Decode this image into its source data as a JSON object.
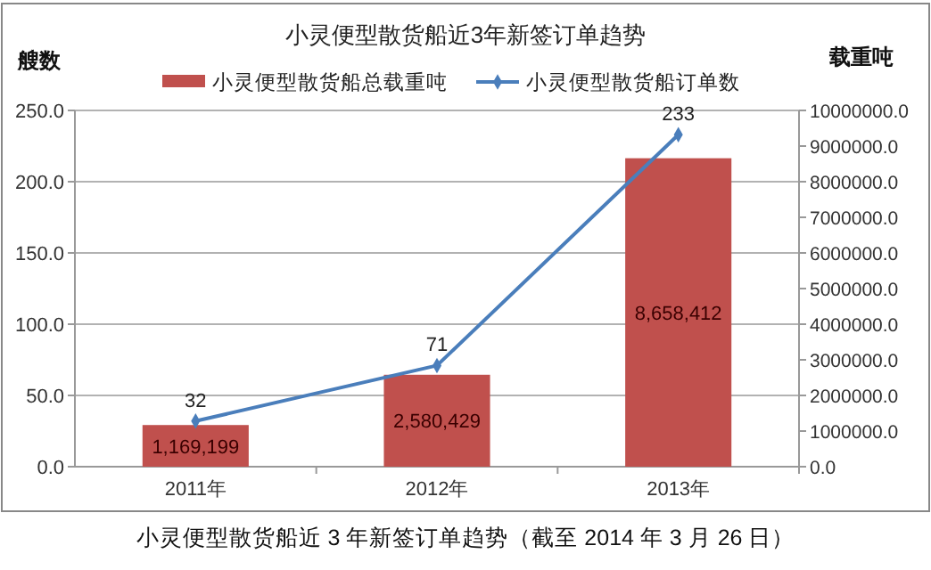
{
  "chart_data": {
    "type": "bar",
    "title": "小灵便型散货船近3年新签订单趋势",
    "ylabel": "艘数",
    "y2label": "载重吨",
    "categories": [
      "2011年",
      "2012年",
      "2013年"
    ],
    "series": [
      {
        "name": "小灵便型散货船总载重吨",
        "axis": "y2",
        "color": "#c0504d",
        "values": [
          1169199,
          2580429,
          8658412
        ],
        "value_labels": [
          "1,169,199",
          "2,580,429",
          "8,658,412"
        ]
      },
      {
        "name": "小灵便型散货船订单数",
        "type": "line",
        "axis": "y",
        "color": "#4a7ebb",
        "values": [
          32,
          71,
          233
        ],
        "value_labels": [
          "32",
          "71",
          "233"
        ],
        "marker": "diamond"
      }
    ],
    "ylim": [
      0,
      250
    ],
    "yticks": [
      {
        "value": 0,
        "label": "0.0"
      },
      {
        "value": 50,
        "label": "50.0"
      },
      {
        "value": 100,
        "label": "100.0"
      },
      {
        "value": 150,
        "label": "150.0"
      },
      {
        "value": 200,
        "label": "200.0"
      },
      {
        "value": 250,
        "label": "250.0"
      }
    ],
    "y2lim": [
      0,
      10000000
    ],
    "y2ticks": [
      {
        "value": 0,
        "label": "0.0"
      },
      {
        "value": 1000000,
        "label": "1000000.0"
      },
      {
        "value": 2000000,
        "label": "2000000.0"
      },
      {
        "value": 3000000,
        "label": "3000000.0"
      },
      {
        "value": 4000000,
        "label": "4000000.0"
      },
      {
        "value": 5000000,
        "label": "5000000.0"
      },
      {
        "value": 6000000,
        "label": "6000000.0"
      },
      {
        "value": 7000000,
        "label": "7000000.0"
      },
      {
        "value": 8000000,
        "label": "8000000.0"
      },
      {
        "value": 9000000,
        "label": "9000000.0"
      },
      {
        "value": 10000000,
        "label": "10000000.0"
      }
    ],
    "grid": "y",
    "legend": "top",
    "annotations": [
      "小灵便型散货船近 3 年新签订单趋势（截至 2014 年 3 月 26 日）"
    ]
  }
}
